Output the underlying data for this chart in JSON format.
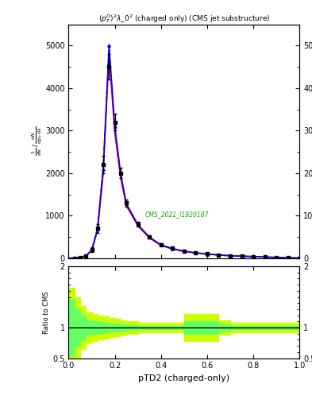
{
  "title": "$(p_T^D)^2\\lambda\\_0^2$ (charged only) (CMS jet substructure)",
  "xlabel": "pTD2 (charged-only)",
  "ylabel_lines": [
    "mathrm d^2N",
    "",
    "mathrm d N / mathrm d p_T mathrm d lambda"
  ],
  "ylabel_ratio": "Ratio to CMS",
  "cms_label": "CMS_2021_I1920187",
  "xlim": [
    0.0,
    1.0
  ],
  "ylim_main": [
    0,
    5500
  ],
  "ylim_ratio": [
    0.5,
    2.0
  ],
  "cms_x": [
    0.025,
    0.05,
    0.075,
    0.1,
    0.125,
    0.15,
    0.175,
    0.2,
    0.225,
    0.25,
    0.3,
    0.35,
    0.4,
    0.45,
    0.5,
    0.55,
    0.6,
    0.65,
    0.7,
    0.75,
    0.8,
    0.85,
    0.9,
    0.95,
    1.0
  ],
  "cms_y": [
    5,
    20,
    60,
    200,
    700,
    2200,
    4500,
    3200,
    2000,
    1300,
    800,
    500,
    320,
    230,
    170,
    130,
    100,
    80,
    60,
    50,
    40,
    30,
    20,
    10,
    5
  ],
  "cms_yerr": [
    3,
    10,
    20,
    50,
    100,
    200,
    300,
    200,
    120,
    80,
    50,
    35,
    25,
    18,
    14,
    12,
    10,
    8,
    7,
    6,
    5,
    4,
    3,
    2,
    1
  ],
  "mc1_x": [
    0.0,
    0.025,
    0.05,
    0.075,
    0.1,
    0.125,
    0.15,
    0.175,
    0.2,
    0.225,
    0.25,
    0.3,
    0.35,
    0.4,
    0.45,
    0.5,
    0.55,
    0.6,
    0.65,
    0.7,
    0.75,
    0.8,
    0.85,
    0.9,
    0.95,
    1.0
  ],
  "mc1_y": [
    0,
    4,
    18,
    55,
    185,
    680,
    2100,
    5000,
    3100,
    2000,
    1280,
    790,
    495,
    315,
    225,
    165,
    128,
    98,
    78,
    58,
    48,
    38,
    28,
    18,
    8,
    3
  ],
  "mc2_x": [
    0.0,
    0.025,
    0.05,
    0.075,
    0.1,
    0.125,
    0.15,
    0.175,
    0.2,
    0.225,
    0.25,
    0.3,
    0.35,
    0.4,
    0.45,
    0.5,
    0.55,
    0.6,
    0.65,
    0.7,
    0.75,
    0.8,
    0.85,
    0.9,
    0.95,
    1.0
  ],
  "mc2_y": [
    0,
    4,
    19,
    57,
    192,
    710,
    2200,
    4900,
    3000,
    1950,
    1260,
    775,
    485,
    308,
    220,
    162,
    125,
    96,
    76,
    57,
    47,
    37,
    27,
    17,
    8,
    3
  ],
  "mc3_x": [
    0.0,
    0.025,
    0.05,
    0.075,
    0.1,
    0.125,
    0.15,
    0.175,
    0.2,
    0.225,
    0.25,
    0.3,
    0.35,
    0.4,
    0.45,
    0.5,
    0.55,
    0.6,
    0.65,
    0.7,
    0.75,
    0.8,
    0.85,
    0.9,
    0.95,
    1.0
  ],
  "mc3_y": [
    0,
    4,
    17,
    52,
    178,
    650,
    2000,
    4800,
    2950,
    1900,
    1230,
    760,
    475,
    300,
    215,
    158,
    122,
    93,
    73,
    55,
    45,
    36,
    26,
    16,
    7,
    3
  ],
  "color_cms": "#000000",
  "color_mc1": "#0000ff",
  "color_mc2": "#ff00ff",
  "color_mc3": "#ff0000",
  "ratio_band_x_edges": [
    0.0,
    0.025,
    0.05,
    0.075,
    0.1,
    0.125,
    0.15,
    0.175,
    0.2,
    0.225,
    0.25,
    0.3,
    0.35,
    0.4,
    0.45,
    0.5,
    0.55,
    0.6,
    0.65,
    0.7,
    0.75,
    0.8,
    0.85,
    0.9,
    0.95,
    1.0
  ],
  "ratio_green_lo": [
    0.55,
    0.7,
    0.8,
    0.88,
    0.9,
    0.91,
    0.92,
    0.93,
    0.94,
    0.95,
    0.96,
    0.97,
    0.97,
    0.97,
    0.97,
    0.9,
    0.9,
    0.9,
    0.95,
    0.97,
    0.97,
    0.97,
    0.97,
    0.97,
    0.97
  ],
  "ratio_green_hi": [
    1.45,
    1.3,
    1.2,
    1.12,
    1.1,
    1.09,
    1.08,
    1.07,
    1.06,
    1.05,
    1.04,
    1.03,
    1.03,
    1.03,
    1.03,
    1.1,
    1.1,
    1.1,
    1.05,
    1.03,
    1.03,
    1.03,
    1.03,
    1.03,
    1.03
  ],
  "ratio_yellow_lo": [
    0.35,
    0.5,
    0.65,
    0.75,
    0.78,
    0.8,
    0.82,
    0.84,
    0.86,
    0.88,
    0.9,
    0.92,
    0.92,
    0.92,
    0.92,
    0.78,
    0.78,
    0.78,
    0.88,
    0.92,
    0.92,
    0.92,
    0.92,
    0.92,
    0.92
  ],
  "ratio_yellow_hi": [
    1.65,
    1.5,
    1.35,
    1.25,
    1.22,
    1.2,
    1.18,
    1.16,
    1.14,
    1.12,
    1.1,
    1.08,
    1.08,
    1.08,
    1.08,
    1.22,
    1.22,
    1.22,
    1.12,
    1.08,
    1.08,
    1.08,
    1.08,
    1.08,
    1.08
  ]
}
